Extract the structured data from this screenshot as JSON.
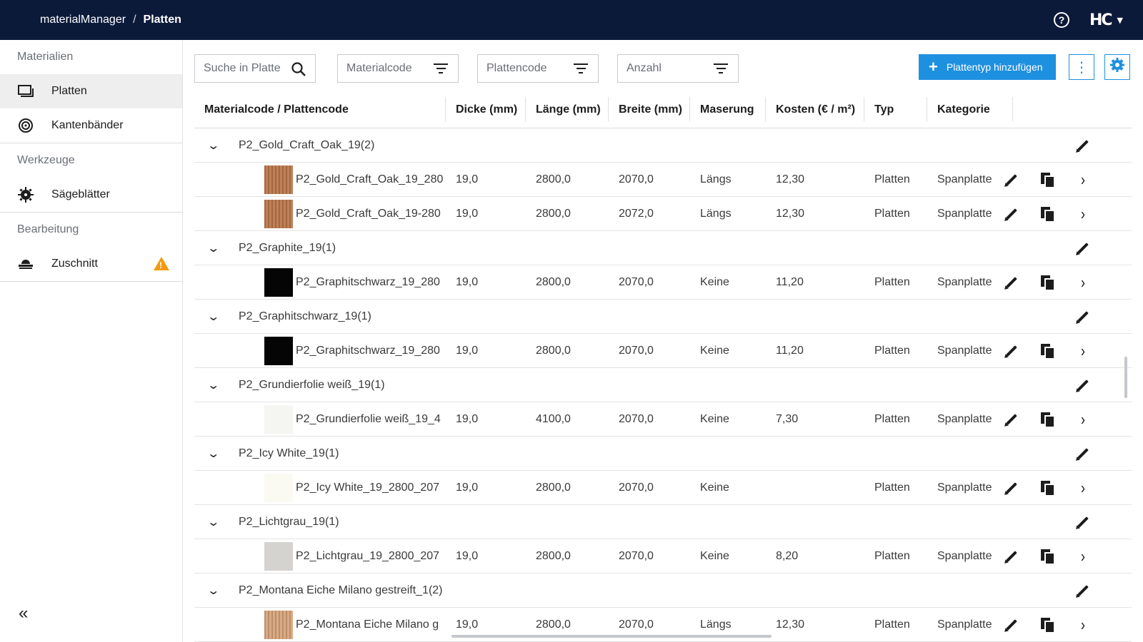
{
  "header": {
    "app": "materialManager",
    "separator": "/",
    "page": "Platten",
    "logo": "HC"
  },
  "sidebar": {
    "sections": [
      {
        "label": "Materialien",
        "items": [
          {
            "label": "Platten",
            "icon": "panels-icon",
            "active": true
          },
          {
            "label": "Kantenbänder",
            "icon": "edgeband-roll-icon"
          }
        ]
      },
      {
        "label": "Werkzeuge",
        "items": [
          {
            "label": "Sägeblätter",
            "icon": "sawblade-icon"
          }
        ]
      },
      {
        "label": "Bearbeitung",
        "items": [
          {
            "label": "Zuschnitt",
            "icon": "cutting-machine-icon",
            "warning": true
          }
        ]
      }
    ]
  },
  "toolbar": {
    "search_placeholder": "Suche in Platte",
    "filter_material": "Materialcode",
    "filter_plate": "Plattencode",
    "filter_count": "Anzahl",
    "add_label": "Plattentyp hinzufügen",
    "accent_color": "#1e90e0"
  },
  "columns": [
    "Materialcode / Plattencode",
    "Dicke (mm)",
    "Länge (mm)",
    "Breite (mm)",
    "Maserung",
    "Kosten (€ / m²)",
    "Typ",
    "Kategorie"
  ],
  "groups": [
    {
      "name": "P2_Gold_Craft_Oak_19",
      "count": "(2)",
      "rows": [
        {
          "code": "P2_Gold_Craft_Oak_19_280",
          "thickness": "19,0",
          "length": "2800,0",
          "width": "2070,0",
          "grain": "Längs",
          "cost": "12,30",
          "type": "Platten",
          "category": "Spanplatte",
          "swatch": "#b9764a"
        },
        {
          "code": "P2_Gold_Craft_Oak_19-280",
          "thickness": "19,0",
          "length": "2800,0",
          "width": "2072,0",
          "grain": "Längs",
          "cost": "12,30",
          "type": "Platten",
          "category": "Spanplatte",
          "swatch": "#b9764a"
        }
      ]
    },
    {
      "name": "P2_Graphite_19",
      "count": "(1)",
      "rows": [
        {
          "code": "P2_Graphitschwarz_19_280",
          "thickness": "19,0",
          "length": "2800,0",
          "width": "2070,0",
          "grain": "Keine",
          "cost": "11,20",
          "type": "Platten",
          "category": "Spanplatte",
          "swatch": "#050505"
        }
      ]
    },
    {
      "name": "P2_Graphitschwarz_19",
      "count": "(1)",
      "rows": [
        {
          "code": "P2_Graphitschwarz_19_280",
          "thickness": "19,0",
          "length": "2800,0",
          "width": "2070,0",
          "grain": "Keine",
          "cost": "11,20",
          "type": "Platten",
          "category": "Spanplatte",
          "swatch": "#050505"
        }
      ]
    },
    {
      "name": "P2_Grundierfolie weiß_19",
      "count": "(1)",
      "rows": [
        {
          "code": "P2_Grundierfolie weiß_19_4",
          "thickness": "19,0",
          "length": "4100,0",
          "width": "2070,0",
          "grain": "Keine",
          "cost": "7,30",
          "type": "Platten",
          "category": "Spanplatte",
          "swatch": "#f5f5f2"
        }
      ]
    },
    {
      "name": "P2_Icy White_19",
      "count": "(1)",
      "rows": [
        {
          "code": "P2_Icy White_19_2800_207",
          "thickness": "19,0",
          "length": "2800,0",
          "width": "2070,0",
          "grain": "Keine",
          "cost": "",
          "type": "Platten",
          "category": "Spanplatte",
          "swatch": "#fafaf3"
        }
      ]
    },
    {
      "name": "P2_Lichtgrau_19",
      "count": "(1)",
      "rows": [
        {
          "code": "P2_Lichtgrau_19_2800_207",
          "thickness": "19,0",
          "length": "2800,0",
          "width": "2070,0",
          "grain": "Keine",
          "cost": "8,20",
          "type": "Platten",
          "category": "Spanplatte",
          "swatch": "#d4d3cf"
        }
      ]
    },
    {
      "name": "P2_Montana Eiche Milano gestreift_1",
      "count": "(2)",
      "rows": [
        {
          "code": "P2_Montana Eiche Milano g",
          "thickness": "19,0",
          "length": "2800,0",
          "width": "2070,0",
          "grain": "Längs",
          "cost": "12,30",
          "type": "Platten",
          "category": "Spanplatte",
          "swatch": "#d6a37a"
        }
      ]
    }
  ]
}
